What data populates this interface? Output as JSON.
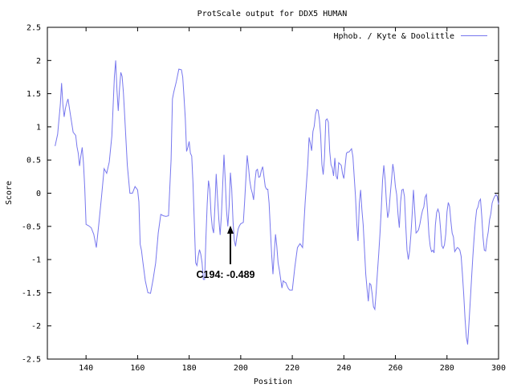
{
  "chart_data": {
    "type": "line",
    "title": "ProtScale output for DDX5 HUMAN",
    "xlabel": "Position",
    "ylabel": "Score",
    "xlim": [
      125,
      300
    ],
    "ylim": [
      -2.5,
      2.5
    ],
    "x_ticks": [
      "140",
      "160",
      "180",
      "200",
      "220",
      "240",
      "260",
      "280",
      "300"
    ],
    "y_ticks": [
      "2.5",
      "2",
      "1.5",
      "1",
      "0.5",
      "0",
      "-0.5",
      "-1",
      "-1.5",
      "-2",
      "-2.5"
    ],
    "grid": false,
    "legend_position": "top-right",
    "colors": {
      "series": "#7777ee",
      "frame": "#000000",
      "background": "#ffffff"
    },
    "annotation": {
      "label": "C194: -0.489",
      "x": 196,
      "y": -0.489
    },
    "series": [
      {
        "name": "Hphob. / Kyte & Doolittle",
        "points": [
          [
            128.0,
            0.71
          ],
          [
            129.0,
            0.89
          ],
          [
            130.0,
            1.33
          ],
          [
            130.5,
            1.66
          ],
          [
            131.0,
            1.34
          ],
          [
            131.5,
            1.15
          ],
          [
            132.0,
            1.28
          ],
          [
            132.5,
            1.36
          ],
          [
            133.0,
            1.42
          ],
          [
            134.0,
            1.17
          ],
          [
            135.0,
            0.92
          ],
          [
            136.0,
            0.87
          ],
          [
            136.5,
            0.7
          ],
          [
            137.0,
            0.6
          ],
          [
            137.5,
            0.41
          ],
          [
            138.0,
            0.56
          ],
          [
            138.5,
            0.69
          ],
          [
            139.0,
            0.45
          ],
          [
            139.5,
            0.07
          ],
          [
            140.0,
            -0.47
          ],
          [
            141.0,
            -0.49
          ],
          [
            142.0,
            -0.52
          ],
          [
            143.0,
            -0.62
          ],
          [
            144.0,
            -0.82
          ],
          [
            145.0,
            -0.45
          ],
          [
            146.0,
            -0.06
          ],
          [
            147.0,
            0.37
          ],
          [
            148.0,
            0.3
          ],
          [
            149.0,
            0.47
          ],
          [
            150.0,
            0.86
          ],
          [
            151.0,
            1.76
          ],
          [
            151.5,
            2.0
          ],
          [
            152.0,
            1.55
          ],
          [
            152.5,
            1.24
          ],
          [
            153.0,
            1.58
          ],
          [
            153.5,
            1.82
          ],
          [
            154.0,
            1.76
          ],
          [
            154.5,
            1.52
          ],
          [
            155.0,
            1.17
          ],
          [
            156.0,
            0.42
          ],
          [
            157.0,
            0.0
          ],
          [
            158.0,
            0.0
          ],
          [
            159.0,
            0.1
          ],
          [
            160.0,
            0.05
          ],
          [
            160.5,
            -0.13
          ],
          [
            161.0,
            -0.77
          ],
          [
            161.5,
            -0.86
          ],
          [
            162.0,
            -1.02
          ],
          [
            163.0,
            -1.32
          ],
          [
            164.0,
            -1.5
          ],
          [
            165.0,
            -1.51
          ],
          [
            166.0,
            -1.3
          ],
          [
            167.0,
            -1.05
          ],
          [
            168.0,
            -0.6
          ],
          [
            169.0,
            -0.32
          ],
          [
            170.0,
            -0.34
          ],
          [
            171.0,
            -0.35
          ],
          [
            172.0,
            -0.34
          ],
          [
            173.0,
            0.5
          ],
          [
            173.5,
            1.42
          ],
          [
            174.0,
            1.52
          ],
          [
            175.0,
            1.68
          ],
          [
            176.0,
            1.87
          ],
          [
            177.0,
            1.86
          ],
          [
            177.5,
            1.75
          ],
          [
            178.0,
            1.45
          ],
          [
            178.5,
            1.13
          ],
          [
            179.0,
            0.63
          ],
          [
            179.5,
            0.69
          ],
          [
            180.0,
            0.78
          ],
          [
            180.5,
            0.6
          ],
          [
            181.0,
            0.56
          ],
          [
            181.5,
            0.15
          ],
          [
            182.0,
            -0.46
          ],
          [
            182.5,
            -1.05
          ],
          [
            183.0,
            -1.09
          ],
          [
            183.5,
            -0.95
          ],
          [
            184.0,
            -0.85
          ],
          [
            184.5,
            -0.92
          ],
          [
            185.0,
            -1.05
          ],
          [
            185.5,
            -1.3
          ],
          [
            186.0,
            -1.3
          ],
          [
            186.5,
            -0.67
          ],
          [
            187.0,
            -0.16
          ],
          [
            187.5,
            0.19
          ],
          [
            188.0,
            0.06
          ],
          [
            188.5,
            -0.32
          ],
          [
            189.0,
            -0.52
          ],
          [
            189.5,
            -0.6
          ],
          [
            190.0,
            -0.2
          ],
          [
            190.5,
            0.29
          ],
          [
            191.0,
            -0.08
          ],
          [
            191.5,
            -0.4
          ],
          [
            192.0,
            -0.63
          ],
          [
            192.5,
            -0.33
          ],
          [
            193.0,
            0.13
          ],
          [
            193.5,
            0.58
          ],
          [
            194.0,
            0.19
          ],
          [
            194.5,
            -0.27
          ],
          [
            195.0,
            -0.5
          ],
          [
            195.5,
            -0.2
          ],
          [
            196.0,
            0.31
          ],
          [
            196.5,
            0.07
          ],
          [
            197.0,
            -0.41
          ],
          [
            197.5,
            -0.71
          ],
          [
            198.0,
            -0.8
          ],
          [
            198.5,
            -0.66
          ],
          [
            199.0,
            -0.54
          ],
          [
            199.5,
            -0.49
          ],
          [
            200.0,
            -0.46
          ],
          [
            200.5,
            -0.45
          ],
          [
            201.0,
            -0.44
          ],
          [
            201.5,
            -0.13
          ],
          [
            202.0,
            0.22
          ],
          [
            202.5,
            0.57
          ],
          [
            203.0,
            0.4
          ],
          [
            203.5,
            0.19
          ],
          [
            204.0,
            0.07
          ],
          [
            204.5,
            0.0
          ],
          [
            205.0,
            -0.1
          ],
          [
            205.5,
            0.17
          ],
          [
            206.0,
            0.34
          ],
          [
            206.5,
            0.36
          ],
          [
            207.0,
            0.24
          ],
          [
            207.5,
            0.25
          ],
          [
            208.0,
            0.34
          ],
          [
            208.5,
            0.4
          ],
          [
            209.0,
            0.25
          ],
          [
            209.5,
            0.1
          ],
          [
            210.0,
            0.06
          ],
          [
            210.5,
            0.06
          ],
          [
            211.0,
            -0.15
          ],
          [
            211.5,
            -0.55
          ],
          [
            212.0,
            -0.93
          ],
          [
            212.5,
            -1.22
          ],
          [
            213.0,
            -0.9
          ],
          [
            213.5,
            -0.62
          ],
          [
            214.0,
            -0.8
          ],
          [
            214.5,
            -1.05
          ],
          [
            215.0,
            -1.16
          ],
          [
            216.0,
            -1.43
          ],
          [
            216.5,
            -1.32
          ],
          [
            217.0,
            -1.34
          ],
          [
            217.5,
            -1.35
          ],
          [
            218.0,
            -1.4
          ],
          [
            218.5,
            -1.44
          ],
          [
            219.0,
            -1.46
          ],
          [
            220.0,
            -1.46
          ],
          [
            221.0,
            -1.11
          ],
          [
            222.0,
            -0.82
          ],
          [
            223.0,
            -0.76
          ],
          [
            224.0,
            -0.82
          ],
          [
            225.0,
            -0.14
          ],
          [
            226.0,
            0.44
          ],
          [
            226.5,
            0.84
          ],
          [
            227.0,
            0.75
          ],
          [
            227.5,
            0.64
          ],
          [
            228.0,
            0.93
          ],
          [
            228.5,
            1.01
          ],
          [
            229.0,
            1.19
          ],
          [
            229.5,
            1.26
          ],
          [
            230.0,
            1.25
          ],
          [
            230.5,
            1.11
          ],
          [
            231.0,
            0.88
          ],
          [
            231.5,
            0.43
          ],
          [
            232.0,
            0.28
          ],
          [
            232.5,
            0.54
          ],
          [
            233.0,
            1.1
          ],
          [
            233.5,
            1.12
          ],
          [
            234.0,
            1.07
          ],
          [
            234.5,
            0.63
          ],
          [
            235.0,
            0.43
          ],
          [
            235.5,
            0.38
          ],
          [
            236.0,
            0.26
          ],
          [
            236.5,
            0.53
          ],
          [
            237.0,
            0.26
          ],
          [
            237.5,
            0.21
          ],
          [
            238.0,
            0.46
          ],
          [
            239.0,
            0.42
          ],
          [
            239.5,
            0.29
          ],
          [
            240.0,
            0.22
          ],
          [
            241.0,
            0.6
          ],
          [
            241.5,
            0.62
          ],
          [
            242.0,
            0.62
          ],
          [
            243.0,
            0.67
          ],
          [
            243.5,
            0.55
          ],
          [
            244.0,
            0.25
          ],
          [
            244.5,
            -0.05
          ],
          [
            245.0,
            -0.46
          ],
          [
            245.5,
            -0.72
          ],
          [
            246.0,
            -0.15
          ],
          [
            246.5,
            0.05
          ],
          [
            247.0,
            -0.25
          ],
          [
            247.5,
            -0.48
          ],
          [
            248.0,
            -0.85
          ],
          [
            248.5,
            -1.22
          ],
          [
            249.0,
            -1.44
          ],
          [
            249.5,
            -1.63
          ],
          [
            250.0,
            -1.36
          ],
          [
            250.5,
            -1.38
          ],
          [
            251.0,
            -1.52
          ],
          [
            251.5,
            -1.71
          ],
          [
            252.0,
            -1.75
          ],
          [
            252.5,
            -1.5
          ],
          [
            253.0,
            -1.2
          ],
          [
            253.5,
            -0.92
          ],
          [
            254.0,
            -0.61
          ],
          [
            254.5,
            -0.25
          ],
          [
            255.0,
            0.19
          ],
          [
            255.5,
            0.42
          ],
          [
            256.0,
            0.21
          ],
          [
            256.5,
            -0.13
          ],
          [
            257.0,
            -0.37
          ],
          [
            257.5,
            -0.27
          ],
          [
            258.0,
            -0.02
          ],
          [
            258.5,
            0.2
          ],
          [
            259.0,
            0.44
          ],
          [
            259.5,
            0.31
          ],
          [
            260.0,
            0.1
          ],
          [
            260.5,
            -0.02
          ],
          [
            261.0,
            -0.32
          ],
          [
            261.5,
            -0.52
          ],
          [
            262.0,
            -0.13
          ],
          [
            262.5,
            0.05
          ],
          [
            263.0,
            0.06
          ],
          [
            263.5,
            -0.05
          ],
          [
            264.0,
            -0.48
          ],
          [
            264.5,
            -0.86
          ],
          [
            265.0,
            -1.0
          ],
          [
            265.5,
            -0.87
          ],
          [
            266.0,
            -0.63
          ],
          [
            266.5,
            -0.32
          ],
          [
            267.0,
            0.05
          ],
          [
            267.5,
            -0.26
          ],
          [
            268.0,
            -0.6
          ],
          [
            268.5,
            -0.58
          ],
          [
            269.0,
            -0.55
          ],
          [
            269.5,
            -0.46
          ],
          [
            270.0,
            -0.35
          ],
          [
            270.5,
            -0.26
          ],
          [
            271.0,
            -0.21
          ],
          [
            271.5,
            -0.06
          ],
          [
            272.0,
            -0.02
          ],
          [
            272.5,
            -0.29
          ],
          [
            273.0,
            -0.63
          ],
          [
            273.5,
            -0.8
          ],
          [
            274.0,
            -0.88
          ],
          [
            274.5,
            -0.86
          ],
          [
            275.0,
            -0.9
          ],
          [
            275.5,
            -0.48
          ],
          [
            276.0,
            -0.29
          ],
          [
            276.5,
            -0.24
          ],
          [
            277.0,
            -0.3
          ],
          [
            277.5,
            -0.53
          ],
          [
            278.0,
            -0.79
          ],
          [
            278.5,
            -0.83
          ],
          [
            279.0,
            -0.78
          ],
          [
            279.5,
            -0.62
          ],
          [
            280.0,
            -0.28
          ],
          [
            280.5,
            -0.14
          ],
          [
            281.0,
            -0.2
          ],
          [
            281.5,
            -0.42
          ],
          [
            282.0,
            -0.6
          ],
          [
            282.5,
            -0.66
          ],
          [
            283.0,
            -0.88
          ],
          [
            283.5,
            -0.85
          ],
          [
            284.0,
            -0.82
          ],
          [
            284.5,
            -0.83
          ],
          [
            285.0,
            -0.86
          ],
          [
            285.5,
            -0.95
          ],
          [
            286.0,
            -1.22
          ],
          [
            286.5,
            -1.52
          ],
          [
            287.0,
            -1.9
          ],
          [
            287.5,
            -2.17
          ],
          [
            288.0,
            -2.28
          ],
          [
            288.5,
            -1.97
          ],
          [
            289.0,
            -1.64
          ],
          [
            289.5,
            -1.3
          ],
          [
            290.0,
            -0.97
          ],
          [
            290.5,
            -0.68
          ],
          [
            291.0,
            -0.43
          ],
          [
            291.5,
            -0.25
          ],
          [
            292.0,
            -0.21
          ],
          [
            292.5,
            -0.12
          ],
          [
            293.0,
            -0.09
          ],
          [
            293.5,
            -0.35
          ],
          [
            294.0,
            -0.67
          ],
          [
            294.5,
            -0.86
          ],
          [
            295.0,
            -0.87
          ],
          [
            295.5,
            -0.7
          ],
          [
            296.0,
            -0.58
          ],
          [
            296.5,
            -0.4
          ],
          [
            297.0,
            -0.31
          ],
          [
            297.5,
            -0.15
          ],
          [
            298.0,
            -0.09
          ],
          [
            298.5,
            -0.05
          ],
          [
            299.0,
            -0.02
          ],
          [
            299.5,
            -0.05
          ],
          [
            300.0,
            -0.17
          ]
        ]
      }
    ]
  }
}
